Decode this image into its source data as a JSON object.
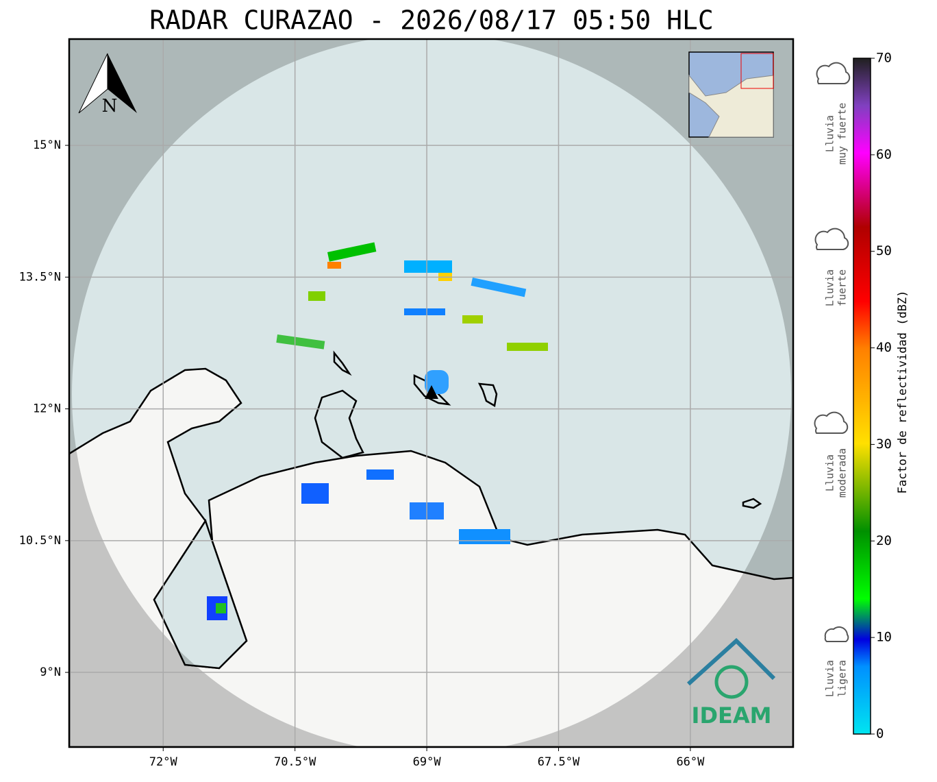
{
  "chart_data": {
    "type": "map",
    "title": "RADAR CURAZAO - 2026/08/17 05:50 HLC",
    "xlim": [
      -73.07,
      -64.83
    ],
    "ylim": [
      8.15,
      16.21
    ],
    "xticks": [
      {
        "value": -72,
        "label": "72°W"
      },
      {
        "value": -70.5,
        "label": "70.5°W"
      },
      {
        "value": -69,
        "label": "69°W"
      },
      {
        "value": -67.5,
        "label": "67.5°W"
      },
      {
        "value": -66,
        "label": "66°W"
      }
    ],
    "yticks": [
      {
        "value": 9,
        "label": "9°N"
      },
      {
        "value": 10.5,
        "label": "10.5°N"
      },
      {
        "value": 12,
        "label": "12°N"
      },
      {
        "value": 13.5,
        "label": "13.5°N"
      },
      {
        "value": 15,
        "label": "15°N"
      }
    ],
    "grid": true
  },
  "colorbar": {
    "label": "Factor de reflectividad (dBZ)",
    "lim": [
      0,
      70
    ],
    "ticks": [
      0,
      10,
      20,
      30,
      40,
      50,
      60,
      70
    ]
  },
  "legend": [
    {
      "lines": [
        "Lluvia",
        "muy fuerte"
      ]
    },
    {
      "lines": [
        "Lluvia",
        "fuerte"
      ]
    },
    {
      "lines": [
        "Lluvia",
        "moderada"
      ]
    },
    {
      "lines": [
        "Lluvia",
        "ligera"
      ]
    }
  ],
  "north_label": "N",
  "logo": "IDEAM"
}
